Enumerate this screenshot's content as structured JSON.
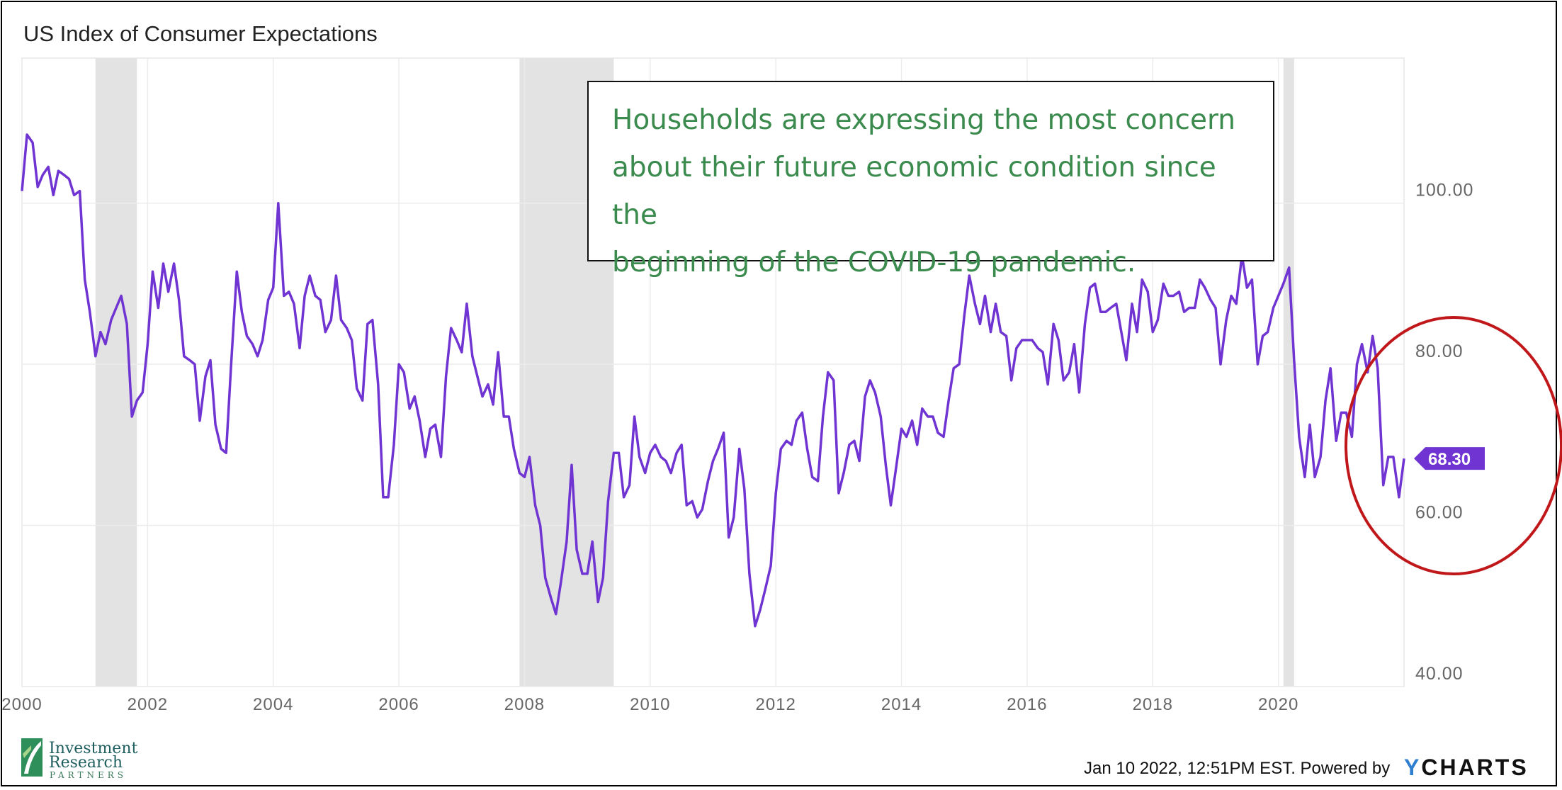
{
  "chart_data": {
    "type": "line",
    "title": "US Index of Consumer Expectations",
    "xlabel": "",
    "ylabel": "",
    "x_ticks": [
      "2000",
      "2002",
      "2004",
      "2006",
      "2008",
      "2010",
      "2012",
      "2014",
      "2016",
      "2018",
      "2020"
    ],
    "y_ticks": [
      "40.00",
      "60.00",
      "80.00",
      "100.00"
    ],
    "ylim": [
      40,
      118
    ],
    "xlim": [
      2000.0,
      2022.0
    ],
    "grid": true,
    "recession_shading": [
      [
        2001.17,
        2001.83
      ],
      [
        2007.92,
        2009.42
      ],
      [
        2020.08,
        2020.25
      ]
    ],
    "last_value_label": "68.30",
    "line_color": "#6f34d1",
    "series": [
      {
        "points": [
          [
            2000.0,
            101.5
          ],
          [
            2000.08,
            108.5
          ],
          [
            2000.17,
            107.5
          ],
          [
            2000.25,
            102.0
          ],
          [
            2000.33,
            103.5
          ],
          [
            2000.42,
            104.5
          ],
          [
            2000.5,
            101.0
          ],
          [
            2000.58,
            104.0
          ],
          [
            2000.67,
            103.5
          ],
          [
            2000.75,
            103.0
          ],
          [
            2000.83,
            101.0
          ],
          [
            2000.92,
            101.5
          ],
          [
            2001.0,
            90.5
          ],
          [
            2001.08,
            86.5
          ],
          [
            2001.17,
            81.0
          ],
          [
            2001.25,
            84.0
          ],
          [
            2001.33,
            82.5
          ],
          [
            2001.42,
            85.5
          ],
          [
            2001.5,
            87.0
          ],
          [
            2001.58,
            88.5
          ],
          [
            2001.67,
            85.0
          ],
          [
            2001.75,
            73.5
          ],
          [
            2001.83,
            75.5
          ],
          [
            2001.92,
            76.5
          ],
          [
            2002.0,
            82.5
          ],
          [
            2002.08,
            91.5
          ],
          [
            2002.17,
            87.0
          ],
          [
            2002.25,
            92.5
          ],
          [
            2002.33,
            89.0
          ],
          [
            2002.42,
            92.5
          ],
          [
            2002.5,
            88.0
          ],
          [
            2002.58,
            81.0
          ],
          [
            2002.67,
            80.5
          ],
          [
            2002.75,
            80.0
          ],
          [
            2002.83,
            73.0
          ],
          [
            2002.92,
            78.5
          ],
          [
            2003.0,
            80.5
          ],
          [
            2003.08,
            72.5
          ],
          [
            2003.17,
            69.5
          ],
          [
            2003.25,
            69.0
          ],
          [
            2003.33,
            80.0
          ],
          [
            2003.42,
            91.5
          ],
          [
            2003.5,
            86.5
          ],
          [
            2003.58,
            83.5
          ],
          [
            2003.67,
            82.5
          ],
          [
            2003.75,
            81.0
          ],
          [
            2003.83,
            83.0
          ],
          [
            2003.92,
            88.0
          ],
          [
            2004.0,
            89.5
          ],
          [
            2004.08,
            100.0
          ],
          [
            2004.17,
            88.5
          ],
          [
            2004.25,
            89.0
          ],
          [
            2004.33,
            87.5
          ],
          [
            2004.42,
            82.0
          ],
          [
            2004.5,
            88.5
          ],
          [
            2004.58,
            91.0
          ],
          [
            2004.67,
            88.5
          ],
          [
            2004.75,
            88.0
          ],
          [
            2004.83,
            84.0
          ],
          [
            2004.92,
            85.5
          ],
          [
            2005.0,
            91.0
          ],
          [
            2005.08,
            85.5
          ],
          [
            2005.17,
            84.5
          ],
          [
            2005.25,
            83.0
          ],
          [
            2005.33,
            77.0
          ],
          [
            2005.42,
            75.5
          ],
          [
            2005.5,
            85.0
          ],
          [
            2005.58,
            85.5
          ],
          [
            2005.67,
            77.5
          ],
          [
            2005.75,
            63.5
          ],
          [
            2005.83,
            63.5
          ],
          [
            2005.92,
            70.0
          ],
          [
            2006.0,
            80.0
          ],
          [
            2006.08,
            79.0
          ],
          [
            2006.17,
            74.5
          ],
          [
            2006.25,
            76.0
          ],
          [
            2006.33,
            73.0
          ],
          [
            2006.42,
            68.5
          ],
          [
            2006.5,
            72.0
          ],
          [
            2006.58,
            72.5
          ],
          [
            2006.67,
            68.5
          ],
          [
            2006.75,
            78.5
          ],
          [
            2006.83,
            84.5
          ],
          [
            2006.92,
            83.0
          ],
          [
            2007.0,
            81.5
          ],
          [
            2007.08,
            87.5
          ],
          [
            2007.17,
            81.0
          ],
          [
            2007.25,
            78.5
          ],
          [
            2007.33,
            76.0
          ],
          [
            2007.42,
            77.5
          ],
          [
            2007.5,
            75.0
          ],
          [
            2007.58,
            81.5
          ],
          [
            2007.67,
            73.5
          ],
          [
            2007.75,
            73.5
          ],
          [
            2007.83,
            69.5
          ],
          [
            2007.92,
            66.5
          ],
          [
            2008.0,
            66.0
          ],
          [
            2008.08,
            68.5
          ],
          [
            2008.17,
            62.5
          ],
          [
            2008.25,
            60.0
          ],
          [
            2008.33,
            53.5
          ],
          [
            2008.42,
            51.0
          ],
          [
            2008.5,
            49.0
          ],
          [
            2008.58,
            53.0
          ],
          [
            2008.67,
            58.0
          ],
          [
            2008.75,
            67.5
          ],
          [
            2008.83,
            57.0
          ],
          [
            2008.92,
            54.0
          ],
          [
            2009.0,
            54.0
          ],
          [
            2009.08,
            58.0
          ],
          [
            2009.17,
            50.5
          ],
          [
            2009.25,
            53.5
          ],
          [
            2009.33,
            63.0
          ],
          [
            2009.42,
            69.0
          ],
          [
            2009.5,
            69.0
          ],
          [
            2009.58,
            63.5
          ],
          [
            2009.67,
            65.0
          ],
          [
            2009.75,
            73.5
          ],
          [
            2009.83,
            68.5
          ],
          [
            2009.92,
            66.5
          ],
          [
            2010.0,
            69.0
          ],
          [
            2010.08,
            70.0
          ],
          [
            2010.17,
            68.5
          ],
          [
            2010.25,
            68.0
          ],
          [
            2010.33,
            66.5
          ],
          [
            2010.42,
            69.0
          ],
          [
            2010.5,
            70.0
          ],
          [
            2010.58,
            62.5
          ],
          [
            2010.67,
            63.0
          ],
          [
            2010.75,
            61.0
          ],
          [
            2010.83,
            62.0
          ],
          [
            2010.92,
            65.5
          ],
          [
            2011.0,
            68.0
          ],
          [
            2011.08,
            69.5
          ],
          [
            2011.17,
            71.5
          ],
          [
            2011.25,
            58.5
          ],
          [
            2011.33,
            61.0
          ],
          [
            2011.42,
            69.5
          ],
          [
            2011.5,
            64.5
          ],
          [
            2011.58,
            54.0
          ],
          [
            2011.67,
            47.5
          ],
          [
            2011.75,
            49.5
          ],
          [
            2011.83,
            52.0
          ],
          [
            2011.92,
            55.0
          ],
          [
            2012.0,
            64.0
          ],
          [
            2012.08,
            69.5
          ],
          [
            2012.17,
            70.5
          ],
          [
            2012.25,
            70.0
          ],
          [
            2012.33,
            73.0
          ],
          [
            2012.42,
            74.0
          ],
          [
            2012.5,
            69.5
          ],
          [
            2012.58,
            66.0
          ],
          [
            2012.67,
            65.5
          ],
          [
            2012.75,
            73.5
          ],
          [
            2012.83,
            79.0
          ],
          [
            2012.92,
            78.0
          ],
          [
            2013.0,
            64.0
          ],
          [
            2013.08,
            66.5
          ],
          [
            2013.17,
            70.0
          ],
          [
            2013.25,
            70.5
          ],
          [
            2013.33,
            68.0
          ],
          [
            2013.42,
            76.0
          ],
          [
            2013.5,
            78.0
          ],
          [
            2013.58,
            76.5
          ],
          [
            2013.67,
            73.5
          ],
          [
            2013.75,
            67.5
          ],
          [
            2013.83,
            62.5
          ],
          [
            2013.92,
            67.5
          ],
          [
            2014.0,
            72.0
          ],
          [
            2014.08,
            71.0
          ],
          [
            2014.17,
            73.0
          ],
          [
            2014.25,
            70.0
          ],
          [
            2014.33,
            74.5
          ],
          [
            2014.42,
            73.5
          ],
          [
            2014.5,
            73.5
          ],
          [
            2014.58,
            71.5
          ],
          [
            2014.67,
            71.0
          ],
          [
            2014.75,
            75.5
          ],
          [
            2014.83,
            79.5
          ],
          [
            2014.92,
            80.0
          ],
          [
            2015.0,
            86.0
          ],
          [
            2015.08,
            91.0
          ],
          [
            2015.17,
            87.5
          ],
          [
            2015.25,
            85.0
          ],
          [
            2015.33,
            88.5
          ],
          [
            2015.42,
            84.0
          ],
          [
            2015.5,
            87.5
          ],
          [
            2015.58,
            84.0
          ],
          [
            2015.67,
            83.5
          ],
          [
            2015.75,
            78.0
          ],
          [
            2015.83,
            82.0
          ],
          [
            2015.92,
            83.0
          ],
          [
            2016.0,
            83.0
          ],
          [
            2016.08,
            83.0
          ],
          [
            2016.17,
            82.0
          ],
          [
            2016.25,
            81.5
          ],
          [
            2016.33,
            77.5
          ],
          [
            2016.42,
            85.0
          ],
          [
            2016.5,
            83.0
          ],
          [
            2016.58,
            78.0
          ],
          [
            2016.67,
            79.0
          ],
          [
            2016.75,
            82.5
          ],
          [
            2016.83,
            76.5
          ],
          [
            2016.92,
            85.0
          ],
          [
            2017.0,
            89.5
          ],
          [
            2017.08,
            90.0
          ],
          [
            2017.17,
            86.5
          ],
          [
            2017.25,
            86.5
          ],
          [
            2017.33,
            87.0
          ],
          [
            2017.42,
            87.5
          ],
          [
            2017.5,
            84.0
          ],
          [
            2017.58,
            80.5
          ],
          [
            2017.67,
            87.5
          ],
          [
            2017.75,
            84.0
          ],
          [
            2017.83,
            90.5
          ],
          [
            2017.92,
            89.0
          ],
          [
            2018.0,
            84.0
          ],
          [
            2018.08,
            85.5
          ],
          [
            2018.17,
            90.0
          ],
          [
            2018.25,
            88.5
          ],
          [
            2018.33,
            88.5
          ],
          [
            2018.42,
            89.0
          ],
          [
            2018.5,
            86.5
          ],
          [
            2018.58,
            87.0
          ],
          [
            2018.67,
            87.0
          ],
          [
            2018.75,
            90.5
          ],
          [
            2018.83,
            89.5
          ],
          [
            2018.92,
            88.0
          ],
          [
            2019.0,
            87.0
          ],
          [
            2019.08,
            80.0
          ],
          [
            2019.17,
            85.5
          ],
          [
            2019.25,
            88.5
          ],
          [
            2019.33,
            87.5
          ],
          [
            2019.42,
            93.5
          ],
          [
            2019.5,
            89.5
          ],
          [
            2019.58,
            90.5
          ],
          [
            2019.67,
            80.0
          ],
          [
            2019.75,
            83.5
          ],
          [
            2019.83,
            84.0
          ],
          [
            2019.92,
            87.0
          ],
          [
            2020.0,
            88.5
          ],
          [
            2020.08,
            90.0
          ],
          [
            2020.17,
            92.0
          ],
          [
            2020.25,
            80.5
          ],
          [
            2020.33,
            71.0
          ],
          [
            2020.42,
            66.0
          ],
          [
            2020.5,
            72.5
          ],
          [
            2020.58,
            66.0
          ],
          [
            2020.67,
            68.5
          ],
          [
            2020.75,
            75.5
          ],
          [
            2020.83,
            79.5
          ],
          [
            2020.92,
            70.5
          ],
          [
            2021.0,
            74.0
          ],
          [
            2021.08,
            74.0
          ],
          [
            2021.17,
            71.0
          ],
          [
            2021.25,
            80.0
          ],
          [
            2021.33,
            82.5
          ],
          [
            2021.42,
            79.0
          ],
          [
            2021.5,
            83.5
          ],
          [
            2021.58,
            79.5
          ],
          [
            2021.67,
            65.0
          ],
          [
            2021.75,
            68.5
          ],
          [
            2021.83,
            68.5
          ],
          [
            2021.92,
            63.5
          ],
          [
            2022.0,
            68.3
          ]
        ]
      }
    ]
  },
  "annotation": {
    "lines": [
      "Households are expressing the most concern",
      "about their future economic condition since the",
      "beginning of the COVID-19 pandemic."
    ]
  },
  "footer": {
    "timestamp": "Jan 10 2022, 12:51PM EST. Powered by",
    "ycharts_y": "Y",
    "ycharts_rest": "CHARTS"
  },
  "logo": {
    "line1": "Investment",
    "line2": "Research",
    "line3": "PARTNERS"
  },
  "colors": {
    "highlight_ellipse": "#c0181a",
    "annotation_text": "#3b8a4e",
    "recession_shade": "#e3e3e3",
    "ycharts_y": "#2f7fd0"
  }
}
